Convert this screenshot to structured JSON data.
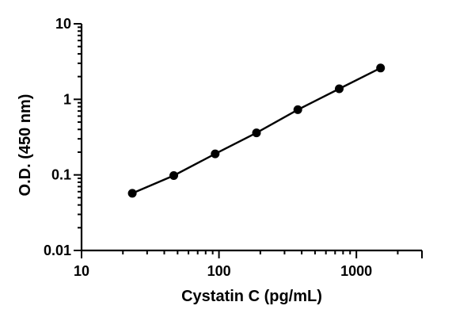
{
  "chart_data": {
    "type": "scatter",
    "xlabel": "Cystatin C (pg/mL)",
    "ylabel": "O.D. (450 nm)",
    "x_scale": "log",
    "y_scale": "log",
    "xlim": [
      10,
      3000
    ],
    "ylim": [
      0.01,
      10
    ],
    "x_ticks": [
      10,
      100,
      1000
    ],
    "x_tick_labels": [
      "10",
      "100",
      "1000"
    ],
    "y_ticks": [
      0.01,
      0.1,
      1,
      10
    ],
    "y_tick_labels": [
      "0.01",
      "0.1",
      "1",
      "10"
    ],
    "grid": false,
    "fit_line": true,
    "series": [
      {
        "x": [
          23.4,
          46.9,
          93.8,
          187.5,
          375,
          750,
          1500
        ],
        "y": [
          0.057,
          0.098,
          0.19,
          0.36,
          0.73,
          1.38,
          2.6
        ]
      }
    ]
  }
}
